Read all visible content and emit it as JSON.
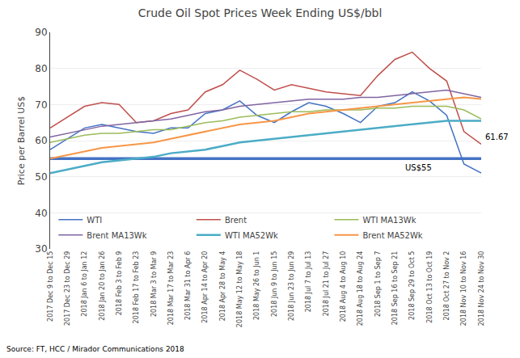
{
  "chart_data": {
    "type": "line",
    "title": "Crude Oil Spot Prices Week Ending US$/bbl",
    "ylabel": "Price per Barrel US$",
    "source": "Source: FT, HCC / Mirador Communications 2018",
    "categories": [
      "2017 Dec 9 to Dec 15",
      "2017 Dec 23 to Dec 29",
      "2018 Jan 6 to Jan 12",
      "2018 Jan 20 to Jan 26",
      "2018 Feb 3 to Feb 9",
      "2018 Feb 17 to Feb 23",
      "2018 Mar 3 to Mar 9",
      "2018 Mar 17 to Mar 23",
      "2018 Mar 31 to Apr 6",
      "2018 Apr 14 to Apr 20",
      "2018 Apr 28 to May 4",
      "2018 May 12 to May 18",
      "2018 May 26 to Jun 1",
      "2018 Jun 9 to Jun 15",
      "2018 Jun 23 to Jun 29",
      "2018 Jul 7 to Jul 13",
      "2018 Jul 21 to Jul 27",
      "2018 Aug 4 to Aug 10",
      "2018 Aug 18 to Aug 24",
      "2018 Sep 1 to Sep 7",
      "2018 Sep 16 to Sep 21",
      "2018 Sep 29 to Oct 5",
      "2018 Oct 13 to Oct 19",
      "2018 Oct 27 to Nov 2",
      "2018 Nov 10 to Nov 16",
      "2018 Nov 24 to Nov 30"
    ],
    "series": [
      {
        "name": "WTI",
        "color": "#4472C4",
        "values": [
          57.5,
          60.5,
          63.5,
          64.5,
          63.5,
          62.5,
          62.0,
          63.5,
          63.5,
          67.5,
          68.5,
          71.0,
          67.0,
          65.0,
          68.0,
          70.5,
          69.5,
          67.5,
          65.0,
          69.5,
          70.5,
          73.5,
          71.0,
          67.0,
          53.5,
          51.0
        ]
      },
      {
        "name": "Brent",
        "color": "#C0504D",
        "values": [
          63.5,
          66.5,
          69.5,
          70.5,
          70.0,
          65.0,
          65.5,
          67.5,
          68.5,
          73.5,
          75.5,
          79.5,
          77.0,
          74.0,
          75.5,
          74.5,
          73.5,
          73.0,
          72.5,
          78.0,
          82.5,
          84.5,
          80.0,
          76.5,
          62.5,
          59.0
        ]
      },
      {
        "name": "WTI MA13Wk",
        "color": "#9BBB59",
        "values": [
          59.5,
          60.5,
          61.5,
          62.0,
          62.0,
          62.5,
          63.0,
          63.0,
          64.0,
          65.0,
          65.5,
          66.5,
          67.0,
          67.5,
          68.0,
          68.0,
          68.5,
          68.5,
          68.5,
          69.0,
          69.0,
          69.5,
          69.5,
          69.5,
          68.5,
          66.0
        ]
      },
      {
        "name": "Brent MA13Wk",
        "color": "#8064A2",
        "values": [
          61.0,
          62.0,
          63.0,
          64.0,
          64.5,
          65.0,
          65.5,
          66.0,
          67.0,
          68.0,
          68.5,
          69.5,
          70.0,
          70.5,
          71.0,
          71.5,
          71.5,
          71.5,
          72.0,
          72.0,
          72.5,
          73.0,
          73.5,
          74.0,
          73.0,
          72.0
        ]
      },
      {
        "name": "WTI MA52Wk",
        "color": "#4BACC6",
        "values": [
          51.0,
          52.0,
          53.0,
          54.0,
          54.5,
          55.0,
          55.5,
          56.5,
          57.0,
          57.5,
          58.5,
          59.5,
          60.0,
          60.5,
          61.0,
          61.5,
          62.0,
          62.5,
          63.0,
          63.5,
          64.0,
          64.5,
          65.0,
          65.5,
          65.5,
          65.5
        ]
      },
      {
        "name": "Brent MA52Wk",
        "color": "#F79646",
        "values": [
          55.0,
          56.0,
          57.0,
          58.0,
          58.5,
          59.0,
          59.5,
          60.5,
          61.5,
          62.5,
          63.5,
          64.5,
          65.0,
          65.5,
          66.5,
          67.5,
          68.0,
          68.5,
          69.0,
          69.5,
          70.0,
          70.5,
          71.0,
          71.5,
          72.0,
          71.5
        ]
      }
    ],
    "hline": {
      "value": 55,
      "color": "#4472C4"
    },
    "annotations": [
      "US$55",
      "61.67"
    ],
    "ylim": [
      30,
      90
    ],
    "yticks": [
      30,
      40,
      50,
      60,
      70,
      80,
      90
    ],
    "grid": true,
    "legend": "lower left"
  }
}
